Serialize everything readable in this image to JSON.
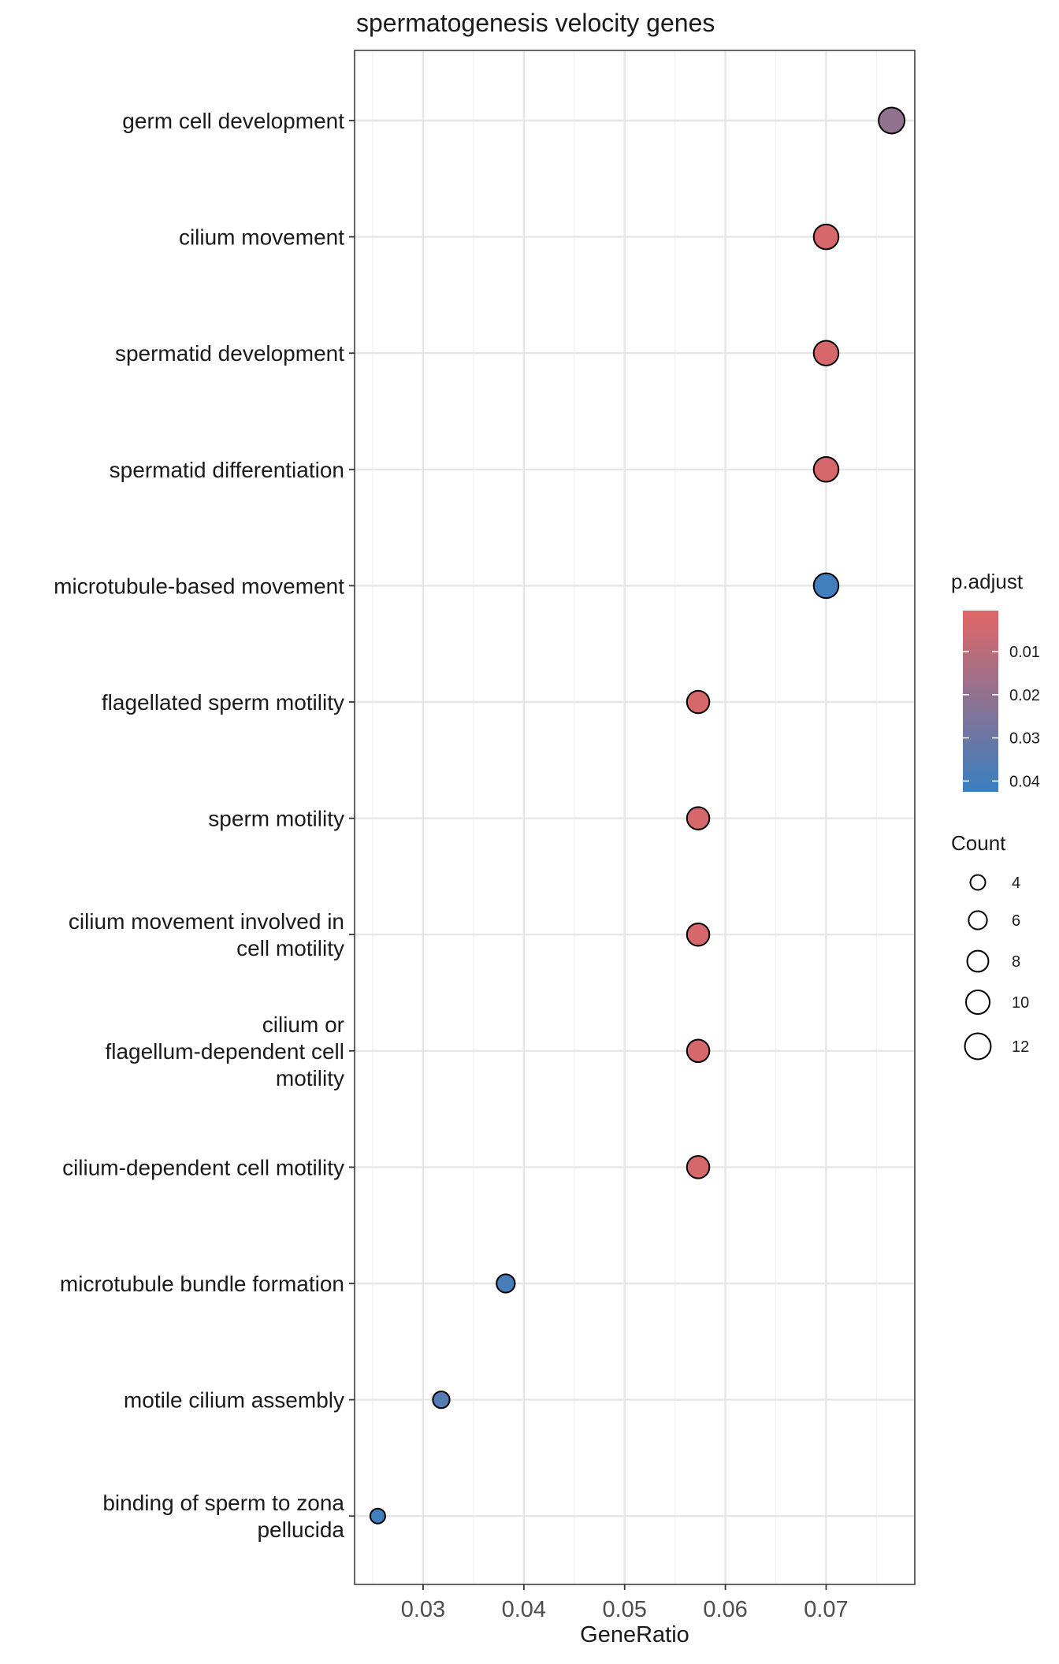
{
  "chart_data": {
    "type": "scatter",
    "title": "spermatogenesis velocity genes",
    "xlabel": "GeneRatio",
    "ylabel": "",
    "xlim": [
      0.0232,
      0.0788
    ],
    "x_ticks": [
      "0.03",
      "0.04",
      "0.05",
      "0.06",
      "0.07"
    ],
    "grid": true,
    "points": [
      {
        "label": [
          "germ cell development"
        ],
        "x": 0.0765,
        "count": 12,
        "p_adjust": 0.02
      },
      {
        "label": [
          "cilium movement"
        ],
        "x": 0.07,
        "count": 11,
        "p_adjust": 0.003
      },
      {
        "label": [
          "spermatid development"
        ],
        "x": 0.07,
        "count": 11,
        "p_adjust": 0.003
      },
      {
        "label": [
          "spermatid differentiation"
        ],
        "x": 0.07,
        "count": 11,
        "p_adjust": 0.003
      },
      {
        "label": [
          "microtubule-based movement"
        ],
        "x": 0.07,
        "count": 11,
        "p_adjust": 0.041
      },
      {
        "label": [
          "flagellated sperm motility"
        ],
        "x": 0.0573,
        "count": 9,
        "p_adjust": 0.003
      },
      {
        "label": [
          "sperm motility"
        ],
        "x": 0.0573,
        "count": 9,
        "p_adjust": 0.003
      },
      {
        "label": [
          "cilium movement involved in",
          "cell motility"
        ],
        "x": 0.0573,
        "count": 9,
        "p_adjust": 0.003
      },
      {
        "label": [
          "cilium or",
          "flagellum-dependent cell",
          "motility"
        ],
        "x": 0.0573,
        "count": 9,
        "p_adjust": 0.003
      },
      {
        "label": [
          "cilium-dependent cell motility"
        ],
        "x": 0.0573,
        "count": 9,
        "p_adjust": 0.003
      },
      {
        "label": [
          "microtubule bundle formation"
        ],
        "x": 0.0382,
        "count": 6,
        "p_adjust": 0.039
      },
      {
        "label": [
          "motile cilium assembly"
        ],
        "x": 0.0318,
        "count": 5,
        "p_adjust": 0.036
      },
      {
        "label": [
          "binding of sperm to zona",
          "pellucida"
        ],
        "x": 0.0255,
        "count": 4,
        "p_adjust": 0.041
      }
    ],
    "color_legend": {
      "title": "p.adjust",
      "min": 0.0005,
      "max": 0.0425,
      "ticks": [
        "0.01",
        "0.02",
        "0.03",
        "0.04"
      ],
      "low_color": "#e06666",
      "high_color": "#3a7fc0",
      "placement": "right"
    },
    "size_legend": {
      "title": "Count",
      "values": [
        "4",
        "6",
        "8",
        "10",
        "12"
      ]
    }
  }
}
